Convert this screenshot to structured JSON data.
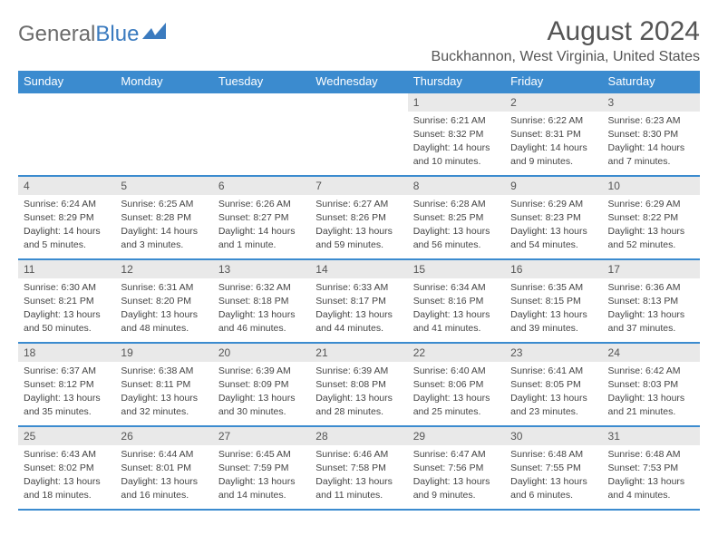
{
  "logo": {
    "text_gray": "General",
    "text_blue": "Blue"
  },
  "title": "August 2024",
  "location": "Buckhannon, West Virginia, United States",
  "colors": {
    "header_bg": "#3b8bcf",
    "daynum_bg": "#e9e9e9",
    "border": "#3b8bcf",
    "text": "#444"
  },
  "weekdays": [
    "Sunday",
    "Monday",
    "Tuesday",
    "Wednesday",
    "Thursday",
    "Friday",
    "Saturday"
  ],
  "weeks": [
    [
      {
        "empty": true
      },
      {
        "empty": true
      },
      {
        "empty": true
      },
      {
        "empty": true
      },
      {
        "num": "1",
        "sunrise": "Sunrise: 6:21 AM",
        "sunset": "Sunset: 8:32 PM",
        "daylight": "Daylight: 14 hours and 10 minutes."
      },
      {
        "num": "2",
        "sunrise": "Sunrise: 6:22 AM",
        "sunset": "Sunset: 8:31 PM",
        "daylight": "Daylight: 14 hours and 9 minutes."
      },
      {
        "num": "3",
        "sunrise": "Sunrise: 6:23 AM",
        "sunset": "Sunset: 8:30 PM",
        "daylight": "Daylight: 14 hours and 7 minutes."
      }
    ],
    [
      {
        "num": "4",
        "sunrise": "Sunrise: 6:24 AM",
        "sunset": "Sunset: 8:29 PM",
        "daylight": "Daylight: 14 hours and 5 minutes."
      },
      {
        "num": "5",
        "sunrise": "Sunrise: 6:25 AM",
        "sunset": "Sunset: 8:28 PM",
        "daylight": "Daylight: 14 hours and 3 minutes."
      },
      {
        "num": "6",
        "sunrise": "Sunrise: 6:26 AM",
        "sunset": "Sunset: 8:27 PM",
        "daylight": "Daylight: 14 hours and 1 minute."
      },
      {
        "num": "7",
        "sunrise": "Sunrise: 6:27 AM",
        "sunset": "Sunset: 8:26 PM",
        "daylight": "Daylight: 13 hours and 59 minutes."
      },
      {
        "num": "8",
        "sunrise": "Sunrise: 6:28 AM",
        "sunset": "Sunset: 8:25 PM",
        "daylight": "Daylight: 13 hours and 56 minutes."
      },
      {
        "num": "9",
        "sunrise": "Sunrise: 6:29 AM",
        "sunset": "Sunset: 8:23 PM",
        "daylight": "Daylight: 13 hours and 54 minutes."
      },
      {
        "num": "10",
        "sunrise": "Sunrise: 6:29 AM",
        "sunset": "Sunset: 8:22 PM",
        "daylight": "Daylight: 13 hours and 52 minutes."
      }
    ],
    [
      {
        "num": "11",
        "sunrise": "Sunrise: 6:30 AM",
        "sunset": "Sunset: 8:21 PM",
        "daylight": "Daylight: 13 hours and 50 minutes."
      },
      {
        "num": "12",
        "sunrise": "Sunrise: 6:31 AM",
        "sunset": "Sunset: 8:20 PM",
        "daylight": "Daylight: 13 hours and 48 minutes."
      },
      {
        "num": "13",
        "sunrise": "Sunrise: 6:32 AM",
        "sunset": "Sunset: 8:18 PM",
        "daylight": "Daylight: 13 hours and 46 minutes."
      },
      {
        "num": "14",
        "sunrise": "Sunrise: 6:33 AM",
        "sunset": "Sunset: 8:17 PM",
        "daylight": "Daylight: 13 hours and 44 minutes."
      },
      {
        "num": "15",
        "sunrise": "Sunrise: 6:34 AM",
        "sunset": "Sunset: 8:16 PM",
        "daylight": "Daylight: 13 hours and 41 minutes."
      },
      {
        "num": "16",
        "sunrise": "Sunrise: 6:35 AM",
        "sunset": "Sunset: 8:15 PM",
        "daylight": "Daylight: 13 hours and 39 minutes."
      },
      {
        "num": "17",
        "sunrise": "Sunrise: 6:36 AM",
        "sunset": "Sunset: 8:13 PM",
        "daylight": "Daylight: 13 hours and 37 minutes."
      }
    ],
    [
      {
        "num": "18",
        "sunrise": "Sunrise: 6:37 AM",
        "sunset": "Sunset: 8:12 PM",
        "daylight": "Daylight: 13 hours and 35 minutes."
      },
      {
        "num": "19",
        "sunrise": "Sunrise: 6:38 AM",
        "sunset": "Sunset: 8:11 PM",
        "daylight": "Daylight: 13 hours and 32 minutes."
      },
      {
        "num": "20",
        "sunrise": "Sunrise: 6:39 AM",
        "sunset": "Sunset: 8:09 PM",
        "daylight": "Daylight: 13 hours and 30 minutes."
      },
      {
        "num": "21",
        "sunrise": "Sunrise: 6:39 AM",
        "sunset": "Sunset: 8:08 PM",
        "daylight": "Daylight: 13 hours and 28 minutes."
      },
      {
        "num": "22",
        "sunrise": "Sunrise: 6:40 AM",
        "sunset": "Sunset: 8:06 PM",
        "daylight": "Daylight: 13 hours and 25 minutes."
      },
      {
        "num": "23",
        "sunrise": "Sunrise: 6:41 AM",
        "sunset": "Sunset: 8:05 PM",
        "daylight": "Daylight: 13 hours and 23 minutes."
      },
      {
        "num": "24",
        "sunrise": "Sunrise: 6:42 AM",
        "sunset": "Sunset: 8:03 PM",
        "daylight": "Daylight: 13 hours and 21 minutes."
      }
    ],
    [
      {
        "num": "25",
        "sunrise": "Sunrise: 6:43 AM",
        "sunset": "Sunset: 8:02 PM",
        "daylight": "Daylight: 13 hours and 18 minutes."
      },
      {
        "num": "26",
        "sunrise": "Sunrise: 6:44 AM",
        "sunset": "Sunset: 8:01 PM",
        "daylight": "Daylight: 13 hours and 16 minutes."
      },
      {
        "num": "27",
        "sunrise": "Sunrise: 6:45 AM",
        "sunset": "Sunset: 7:59 PM",
        "daylight": "Daylight: 13 hours and 14 minutes."
      },
      {
        "num": "28",
        "sunrise": "Sunrise: 6:46 AM",
        "sunset": "Sunset: 7:58 PM",
        "daylight": "Daylight: 13 hours and 11 minutes."
      },
      {
        "num": "29",
        "sunrise": "Sunrise: 6:47 AM",
        "sunset": "Sunset: 7:56 PM",
        "daylight": "Daylight: 13 hours and 9 minutes."
      },
      {
        "num": "30",
        "sunrise": "Sunrise: 6:48 AM",
        "sunset": "Sunset: 7:55 PM",
        "daylight": "Daylight: 13 hours and 6 minutes."
      },
      {
        "num": "31",
        "sunrise": "Sunrise: 6:48 AM",
        "sunset": "Sunset: 7:53 PM",
        "daylight": "Daylight: 13 hours and 4 minutes."
      }
    ]
  ]
}
